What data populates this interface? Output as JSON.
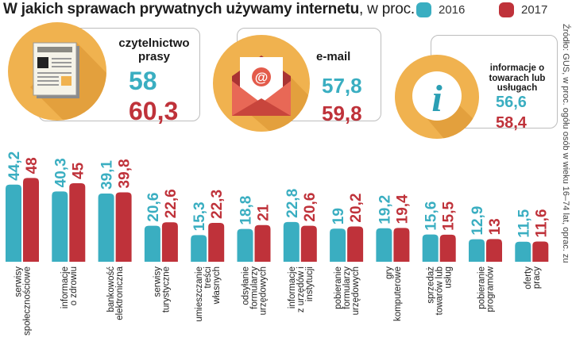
{
  "title_bold": "W jakich sprawach prywatnych używamy internetu",
  "title_rest": ", w proc.",
  "legend": [
    {
      "label": "2016",
      "color": "#3aaec1"
    },
    {
      "label": "2017",
      "color": "#bf323a"
    }
  ],
  "colors": {
    "y2016": "#3aaec1",
    "y2017": "#bf323a",
    "circle": "#f0b24f"
  },
  "cards": [
    {
      "name": "czytelnictwo prasy",
      "v2016": "58",
      "v2017": "60,3",
      "icon": "newspaper-icon"
    },
    {
      "name": "e-mail",
      "v2016": "57,8",
      "v2017": "59,8",
      "icon": "envelope-icon"
    },
    {
      "name": "informacje o towarach lub usługach",
      "v2016": "56,6",
      "v2017": "58,4",
      "icon": "info-icon"
    }
  ],
  "source": "Źródło: GUS, w proc. ogółu osób w wieku 16–74 lat, oprac. zu",
  "chart_data": {
    "type": "bar",
    "categories": [
      "serwisy społecznościowe",
      "informacje o zdrowiu",
      "bankowość elektroniczna",
      "serwisy turystyczne",
      "umieszczanie treści własnych",
      "odsyłanie formularzy urzędowych",
      "informacje z urzędów i instytucji",
      "pobieranie formularzy urzędowych",
      "gry komputerowe",
      "sprzedaż towarów lub usług",
      "pobieranie programów",
      "oferty pracy"
    ],
    "series": [
      {
        "name": "2016",
        "values": [
          44.2,
          40.3,
          39.1,
          20.6,
          15.3,
          18.8,
          22.8,
          19,
          19.2,
          15.6,
          12.9,
          11.5
        ],
        "labels": [
          "44,2",
          "40,3",
          "39,1",
          "20,6",
          "15,3",
          "18,8",
          "22,8",
          "19",
          "19,2",
          "15,6",
          "12,9",
          "11,5"
        ]
      },
      {
        "name": "2017",
        "values": [
          48,
          45,
          39.8,
          22.6,
          22.3,
          21,
          20.6,
          20.2,
          19.4,
          15.5,
          13,
          11.6
        ],
        "labels": [
          "48",
          "45",
          "39,8",
          "22,6",
          "22,3",
          "21",
          "20,6",
          "20,2",
          "19,4",
          "15,5",
          "13",
          "11,6"
        ]
      }
    ],
    "unit": "w proc."
  }
}
